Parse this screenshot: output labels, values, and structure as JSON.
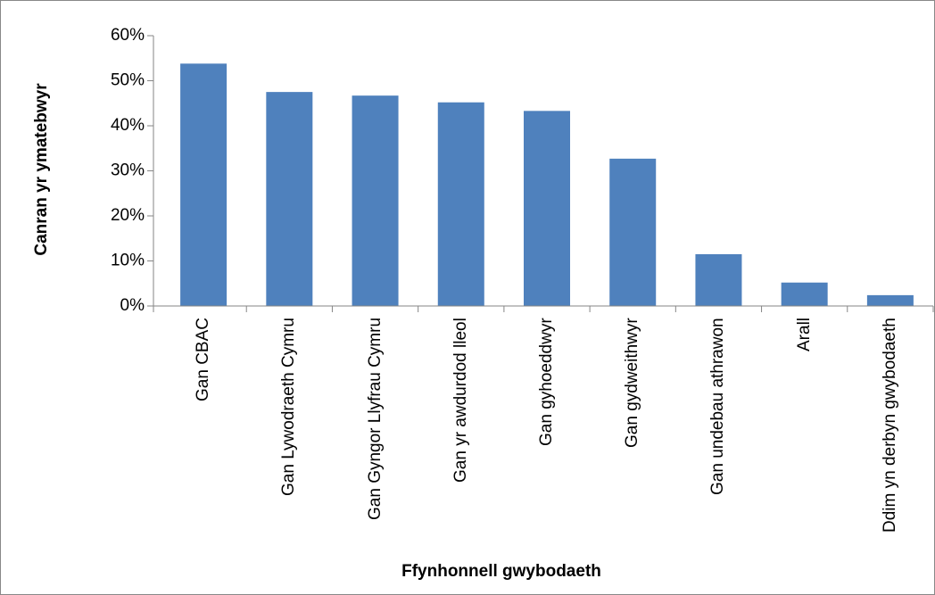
{
  "chart_data": {
    "type": "bar",
    "y_label": "Canran yr ymatebwyr",
    "x_label": "Ffynhonnell gwybodaeth",
    "categories": [
      "Gan CBAC",
      "Gan Lywodraeth Cymru",
      "Gan Gyngor Llyfrau Cymru",
      "Gan yr awdurdod lleol",
      "Gan gyhoeddwyr",
      "Gan gydweithwyr",
      "Gan undebau athrawon",
      "Arall",
      "Ddim yn derbyn gwybodaeth"
    ],
    "values": [
      53.8,
      47.5,
      46.7,
      45.2,
      43.3,
      32.7,
      11.5,
      5.2,
      2.4
    ],
    "color": "#4f81bd",
    "ylim": [
      0,
      60
    ],
    "yticks": [
      {
        "value": 0,
        "label": "0%"
      },
      {
        "value": 10,
        "label": "10%"
      },
      {
        "value": 20,
        "label": "20%"
      },
      {
        "value": 30,
        "label": "30%"
      },
      {
        "value": 40,
        "label": "40%"
      },
      {
        "value": 50,
        "label": "50%"
      },
      {
        "value": 60,
        "label": "60%"
      }
    ],
    "grid": false
  }
}
